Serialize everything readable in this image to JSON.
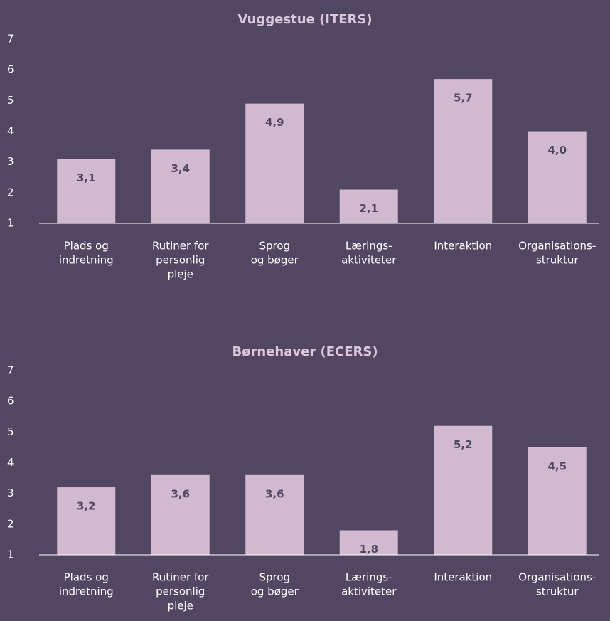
{
  "chart_data": [
    {
      "type": "bar",
      "title": "Vuggestue (ITERS)",
      "categories": [
        [
          "Plads og",
          "indretning"
        ],
        [
          "Rutiner for",
          "personlig",
          "pleje"
        ],
        [
          "Sprog",
          "og bøger"
        ],
        [
          "Lærings-",
          "aktiviteter"
        ],
        [
          "Interaktion"
        ],
        [
          "Organisations-",
          "struktur"
        ]
      ],
      "values": [
        3.1,
        3.4,
        4.9,
        2.1,
        5.7,
        4.0
      ],
      "value_labels": [
        "3,1",
        "3,4",
        "4,9",
        "2,1",
        "5,7",
        "4,0"
      ],
      "color": "#d1b9d0",
      "ylim": [
        1,
        7
      ],
      "yticks": [
        1,
        2,
        3,
        4,
        5,
        6,
        7
      ],
      "grid": false
    },
    {
      "type": "bar",
      "title": "Børnehaver (ECERS)",
      "categories": [
        [
          "Plads og",
          "indretning"
        ],
        [
          "Rutiner for",
          "personlig",
          "pleje"
        ],
        [
          "Sprog",
          "og bøger"
        ],
        [
          "Lærings-",
          "aktiviteter"
        ],
        [
          "Interaktion"
        ],
        [
          "Organisations-",
          "struktur"
        ]
      ],
      "values": [
        3.2,
        3.6,
        3.6,
        1.8,
        5.2,
        4.5
      ],
      "value_labels": [
        "3,2",
        "3,6",
        "3,6",
        "1,8",
        "5,2",
        "4,5"
      ],
      "color": "#d1b9d0",
      "ylim": [
        1,
        7
      ],
      "yticks": [
        1,
        2,
        3,
        4,
        5,
        6,
        7
      ],
      "grid": false
    }
  ]
}
